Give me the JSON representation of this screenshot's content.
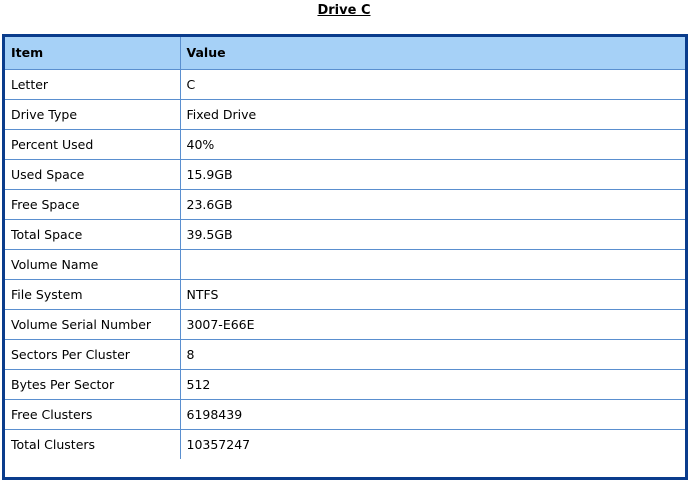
{
  "title": "Drive C",
  "table": {
    "headers": [
      "Item",
      "Value"
    ],
    "rows": [
      [
        "Letter",
        "C"
      ],
      [
        "Drive Type",
        "Fixed Drive"
      ],
      [
        "Percent Used",
        "40%"
      ],
      [
        "Used Space",
        "15.9GB"
      ],
      [
        "Free Space",
        "23.6GB"
      ],
      [
        "Total Space",
        "39.5GB"
      ],
      [
        "Volume Name",
        ""
      ],
      [
        "File System",
        "NTFS"
      ],
      [
        "Volume Serial Number",
        "3007-E66E"
      ],
      [
        "Sectors Per Cluster",
        "8"
      ],
      [
        "Bytes Per Sector",
        "512"
      ],
      [
        "Free Clusters",
        "6198439"
      ],
      [
        "Total Clusters",
        "10357247"
      ]
    ]
  },
  "colors": {
    "header_bg": "#a6d1f7",
    "frame_border": "#0a3c8c",
    "cell_border": "#5a8fcf"
  }
}
